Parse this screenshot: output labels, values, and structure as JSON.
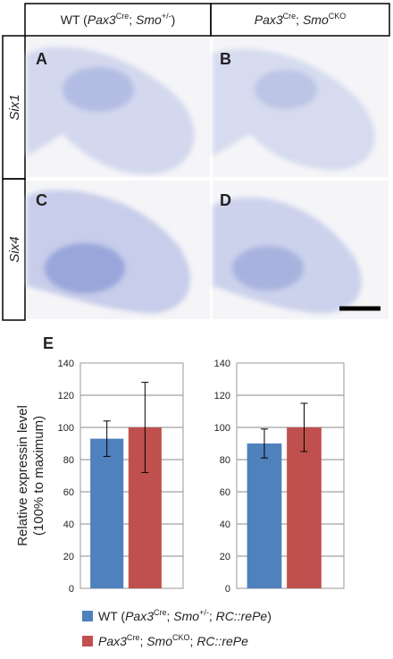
{
  "columns": [
    {
      "parts": [
        "WT (",
        "Pax3",
        "Cre",
        "; ",
        "Smo",
        "+/-",
        ")"
      ]
    },
    {
      "parts": [
        "Pax3",
        "Cre",
        "; ",
        "Smo",
        "CKO"
      ]
    }
  ],
  "rows": [
    "Six1",
    "Six4"
  ],
  "panels": [
    "A",
    "B",
    "C",
    "D"
  ],
  "chart_label": "E",
  "ylabel": [
    "Relative expressin level",
    "(100% to maximum)"
  ],
  "legend": [
    {
      "parts": [
        "WT (",
        "Pax3",
        "Cre",
        "; ",
        "Smo",
        "+/-",
        "; ",
        "RC::rePe",
        ")"
      ]
    },
    {
      "parts": [
        "Pax3",
        "Cre",
        "; ",
        "Smo",
        "CKO",
        "; ",
        "RC::rePe"
      ]
    }
  ],
  "chart_data": [
    {
      "type": "bar",
      "ylim": [
        0,
        140
      ],
      "yticks": [
        0,
        20,
        40,
        60,
        80,
        100,
        120,
        140
      ],
      "grid": true,
      "series": [
        {
          "color": "#4f81bd",
          "values": [
            93
          ],
          "errors": [
            11
          ]
        },
        {
          "color": "#c0504d",
          "values": [
            100
          ],
          "errors": [
            28
          ]
        }
      ]
    },
    {
      "type": "bar",
      "ylim": [
        0,
        140
      ],
      "yticks": [
        0,
        20,
        40,
        60,
        80,
        100,
        120,
        140
      ],
      "grid": true,
      "series": [
        {
          "color": "#4f81bd",
          "values": [
            90
          ],
          "errors": [
            9
          ]
        },
        {
          "color": "#c0504d",
          "values": [
            100
          ],
          "errors": [
            15
          ]
        }
      ]
    }
  ]
}
